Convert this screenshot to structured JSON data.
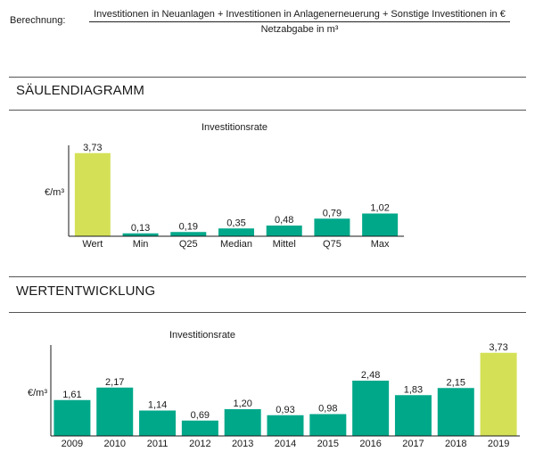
{
  "formula": {
    "label": "Berechnung:",
    "numerator": "Investitionen in Neuanlagen + Investitionen in Anlagenerneuerung + Sonstige Investitionen in €",
    "denominator": "Netzabgabe in m³"
  },
  "sections": {
    "bar_chart_title": "SÄULENDIAGRAMM",
    "development_title": "WERTENTWICKLUNG"
  },
  "colors": {
    "highlight": "#d4e157",
    "bar": "#00a88a",
    "axis": "#1a1a1a"
  },
  "chart_data": [
    {
      "type": "bar",
      "title": "Investitionsrate",
      "xlabel": "",
      "ylabel": "€/m³",
      "categories": [
        "Wert",
        "Min",
        "Q25",
        "Median",
        "Mittel",
        "Q75",
        "Max"
      ],
      "values": [
        3.73,
        0.13,
        0.19,
        0.35,
        0.48,
        0.79,
        1.02
      ],
      "labels": [
        "3,73",
        "0,13",
        "0,19",
        "0,35",
        "0,48",
        "0,79",
        "1,02"
      ],
      "highlight_index": 0,
      "ylim": [
        0,
        4.2
      ],
      "grid": false
    },
    {
      "type": "bar",
      "title": "Investitionsrate",
      "xlabel": "",
      "ylabel": "€/m³",
      "categories": [
        "2009",
        "2010",
        "2011",
        "2012",
        "2013",
        "2014",
        "2015",
        "2016",
        "2017",
        "2018",
        "2019"
      ],
      "values": [
        1.61,
        2.17,
        1.14,
        0.69,
        1.2,
        0.93,
        0.98,
        2.48,
        1.83,
        2.15,
        3.73
      ],
      "labels": [
        "1,61",
        "2,17",
        "1,14",
        "0,69",
        "1,20",
        "0,93",
        "0,98",
        "2,48",
        "1,83",
        "2,15",
        "3,73"
      ],
      "highlight_index": 10,
      "ylim": [
        0,
        4.2
      ],
      "grid": false
    }
  ]
}
